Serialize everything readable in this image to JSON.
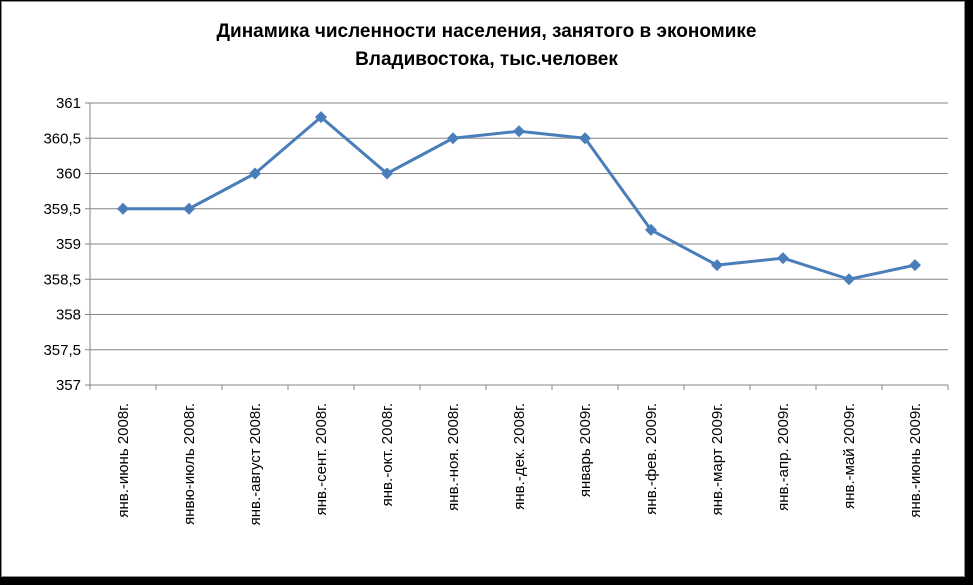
{
  "chart_data": {
    "type": "line",
    "title_lines": [
      "Динамика численности населения, занятого в экономике",
      "Владивостока, тыс.человек"
    ],
    "categories": [
      "янв.-июнь 2008г.",
      "янвю-июль 2008г.",
      "янв.-август 2008г.",
      "янв.-сент. 2008г.",
      "янв.-окт. 2008г.",
      "янв.-ноя. 2008г.",
      "янв.-дек. 2008г.",
      "январь 2009г.",
      "янв.-фев. 2009г.",
      "янв.-март 2009г.",
      "янв.-апр. 2009г.",
      "янв.-май 2009г.",
      "янв.-июнь 2009г."
    ],
    "series": [
      {
        "values": [
          359.5,
          359.5,
          360.0,
          360.8,
          360.0,
          360.5,
          360.6,
          360.5,
          359.2,
          358.7,
          358.8,
          358.5,
          358.7
        ],
        "color": "#4a7ebb",
        "marker": "diamond"
      }
    ],
    "ylim": [
      357,
      361
    ],
    "yticks": [
      357,
      357.5,
      358,
      358.5,
      359,
      359.5,
      360,
      360.5,
      361
    ],
    "ytick_labels": [
      "357",
      "357,5",
      "358",
      "358,5",
      "359",
      "359,5",
      "360",
      "360,5",
      "361"
    ],
    "grid": true,
    "gridline_color": "#868686",
    "axis_color": "#868686"
  }
}
